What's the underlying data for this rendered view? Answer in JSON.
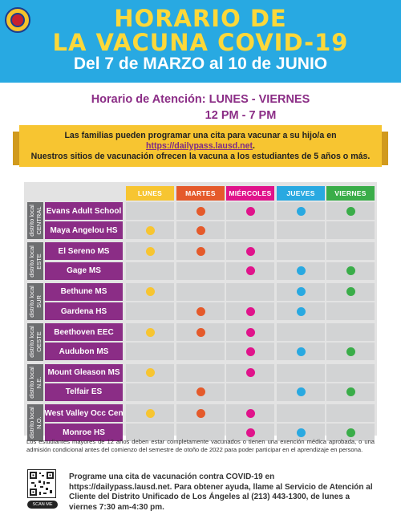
{
  "header": {
    "title_line1": "HORARIO DE",
    "title_line2": "LA VACUNA COVID-19",
    "dates": "Del 7 de MARZO al 10 de JUNIO"
  },
  "hours": {
    "label": "Horario de Atención: LUNES - VIERNES",
    "time": "12 PM - 7 PM"
  },
  "banner": {
    "line1": "Las familias pueden programar una cita para vacunar a su hijo/a en",
    "link": "https://dailypass.lausd.net",
    "link_suffix": ".",
    "line3": "Nuestros sitios de vacunación ofrecen la vacuna a los estudiantes de 5 años o más."
  },
  "colors": {
    "header_bg": "#28a9e2",
    "title_yellow": "#fcd83a",
    "purple": "#8b2d86",
    "lunes": "#f7c531",
    "martes": "#e55a2b",
    "miercoles": "#e0138b",
    "jueves": "#29a9e1",
    "viernes": "#3aad49"
  },
  "days": [
    {
      "label": "LUNES",
      "color": "#f7c531"
    },
    {
      "label": "MARTES",
      "color": "#e55a2b"
    },
    {
      "label": "MIÉRCOLES",
      "color": "#e0138b"
    },
    {
      "label": "JUEVES",
      "color": "#29a9e1"
    },
    {
      "label": "VIERNES",
      "color": "#3aad49"
    }
  ],
  "districts": [
    {
      "label": "distrito local",
      "name": "CENTRAL",
      "schools": [
        {
          "name": "Evans Adult School",
          "days": [
            false,
            true,
            true,
            true,
            true
          ]
        },
        {
          "name": "Maya Angelou HS",
          "days": [
            true,
            true,
            false,
            false,
            false
          ]
        }
      ]
    },
    {
      "label": "distrito local",
      "name": "ESTE",
      "schools": [
        {
          "name": "El Sereno MS",
          "days": [
            true,
            true,
            true,
            false,
            false
          ]
        },
        {
          "name": "Gage MS",
          "days": [
            false,
            false,
            true,
            true,
            true
          ]
        }
      ]
    },
    {
      "label": "distrito local",
      "name": "SUR",
      "schools": [
        {
          "name": "Bethune MS",
          "days": [
            true,
            false,
            false,
            true,
            true
          ]
        },
        {
          "name": "Gardena HS",
          "days": [
            false,
            true,
            true,
            true,
            false
          ]
        }
      ]
    },
    {
      "label": "distrito local",
      "name": "OESTE",
      "schools": [
        {
          "name": "Beethoven EEC",
          "days": [
            true,
            true,
            true,
            false,
            false
          ]
        },
        {
          "name": "Audubon MS",
          "days": [
            false,
            false,
            true,
            true,
            true
          ]
        }
      ]
    },
    {
      "label": "distrito local",
      "name": "N.E.",
      "schools": [
        {
          "name": "Mount Gleason MS",
          "days": [
            true,
            false,
            true,
            false,
            false
          ]
        },
        {
          "name": "Telfair ES",
          "days": [
            false,
            true,
            false,
            true,
            true
          ]
        }
      ]
    },
    {
      "label": "distrito local",
      "name": "N.O.",
      "schools": [
        {
          "name": "West Valley Occ Cen",
          "days": [
            true,
            true,
            true,
            false,
            false
          ]
        },
        {
          "name": "Monroe HS",
          "days": [
            false,
            false,
            true,
            true,
            true
          ]
        }
      ]
    }
  ],
  "note": "Los estudiantes mayores de 12 años deben estar completamente vacunados o tienen una exención médica aprobada, o una admisión condicional antes del comienzo del semestre de otoño de 2022 para poder participar en el aprendizaje en persona.",
  "footer": {
    "text": "Programe una cita de vacunación contra COVID-19 en https://dailypass.lausd.net. Para obtener ayuda, llame al Servicio de Atención al Cliente del Distrito Unificado de Los Ángeles al (213) 443-1300, de lunes a viernes 7:30 am-4:30 pm.",
    "scan_label": "SCAN ME"
  }
}
